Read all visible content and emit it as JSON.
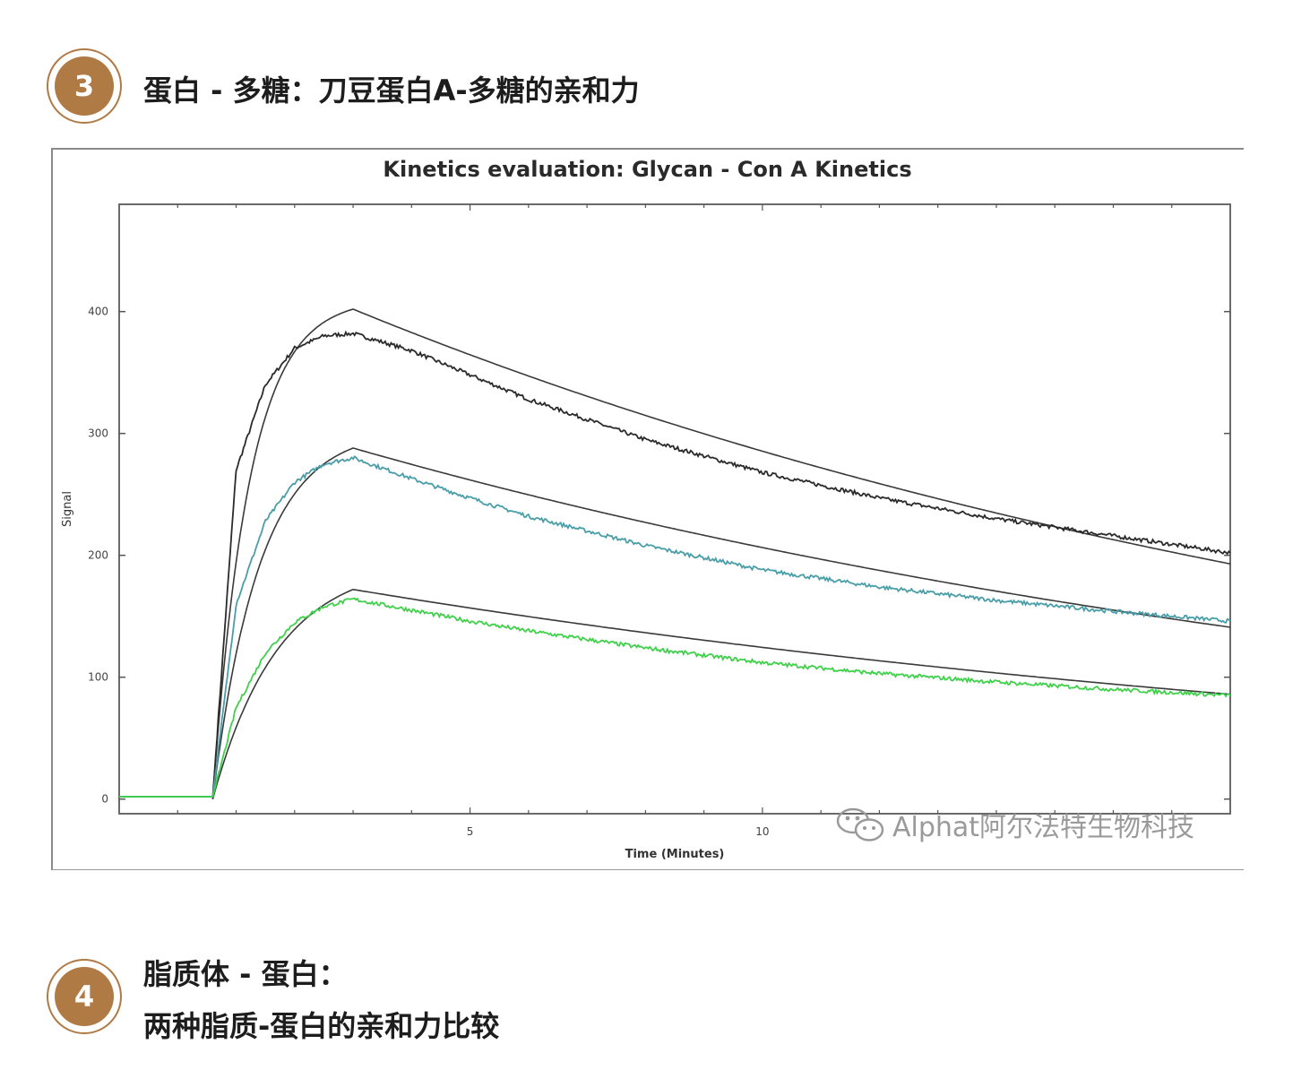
{
  "sections": [
    {
      "number": "3",
      "title_lines": [
        "蛋白 - 多糖：刀豆蛋白A-多糖的亲和力"
      ]
    },
    {
      "number": "4",
      "title_lines": [
        "脂质体 - 蛋白：",
        "两种脂质-蛋白的亲和力比较"
      ]
    }
  ],
  "watermark": {
    "icon": "wechat-icon",
    "text": "Alphat阿尔法特生物科技"
  },
  "colors": {
    "accent": "#b07a45",
    "series_dark": "#2b2b2b",
    "series_teal": "#4a9ea8",
    "series_green": "#3fd14a",
    "fit": "#3a3a3a"
  },
  "chart_data": {
    "type": "line",
    "title": "Kinetics evaluation: Glycan - Con A Kinetics",
    "xlabel": "Time (Minutes)",
    "ylabel": "Signal",
    "xlim": [
      -1,
      18
    ],
    "ylim": [
      -12,
      488
    ],
    "xticks": [
      5,
      10
    ],
    "yticks": [
      0,
      100,
      200,
      300,
      400
    ],
    "association_start_min": 0.6,
    "dissociation_start_min": 3.0,
    "end_min": 18,
    "series": [
      {
        "color": "#2b2b2b",
        "values_x": [
          -1,
          0.6,
          1.0,
          1.5,
          2.0,
          2.5,
          3.0,
          4,
          5,
          6,
          8,
          10,
          12,
          14,
          16,
          18
        ],
        "values_y": [
          2,
          2,
          270,
          340,
          370,
          380,
          382,
          368,
          348,
          328,
          295,
          268,
          247,
          230,
          216,
          202
        ],
        "fit": {
          "plateau_at_3min": 402,
          "end_value": 193
        }
      },
      {
        "color": "#4a9ea8",
        "values_x": [
          -1,
          0.6,
          1.0,
          1.5,
          2.0,
          2.5,
          3.0,
          4,
          5,
          6,
          8,
          10,
          12,
          14,
          16,
          18
        ],
        "values_y": [
          2,
          2,
          160,
          228,
          260,
          275,
          280,
          263,
          247,
          232,
          208,
          188,
          174,
          163,
          154,
          146
        ],
        "fit": {
          "plateau_at_3min": 288,
          "end_value": 141
        }
      },
      {
        "color": "#3fd14a",
        "values_x": [
          -1,
          0.6,
          1.0,
          1.5,
          2.0,
          2.5,
          3.0,
          4,
          5,
          6,
          8,
          10,
          12,
          14,
          16,
          18
        ],
        "values_y": [
          2,
          2,
          75,
          120,
          145,
          158,
          164,
          155,
          146,
          138,
          124,
          112,
          103,
          96,
          90,
          85
        ],
        "fit": {
          "plateau_at_3min": 172,
          "end_value": 86
        }
      }
    ],
    "grid": false,
    "legend": "none"
  }
}
